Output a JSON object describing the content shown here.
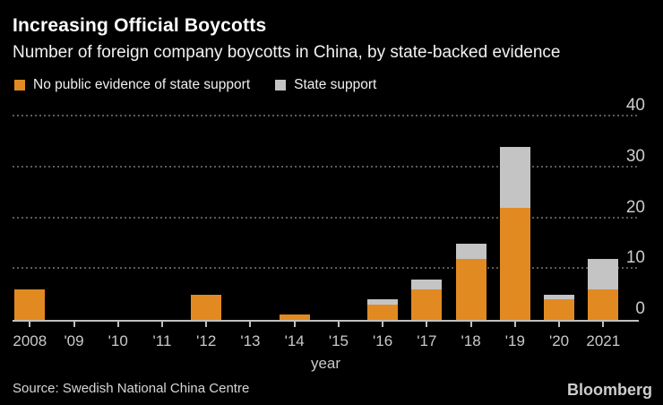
{
  "header": {
    "title": "Increasing Official Boycotts",
    "subtitle": "Number of foreign company boycotts in China, by state-backed evidence"
  },
  "footer": {
    "source": "Source: Swedish National China Centre",
    "brand": "Bloomberg"
  },
  "colors": {
    "background": "#000000",
    "orange": "#E18A21",
    "gray": "#C4C4C4",
    "gridline": "#5a5a5a",
    "axis": "#c0c0c0",
    "tick_label": "#cccccc"
  },
  "chart_data": {
    "type": "bar",
    "stacked": true,
    "title": "Increasing Official Boycotts",
    "subtitle": "Number of foreign company boycotts in China, by state-backed evidence",
    "categories": [
      "2008",
      "'09",
      "'10",
      "'11",
      "'12",
      "'13",
      "'14",
      "'15",
      "'16",
      "'17",
      "'18",
      "'19",
      "'20",
      "2021"
    ],
    "series": [
      {
        "name": "No public evidence of state support",
        "color": "#E18A21",
        "values": [
          6,
          0,
          0,
          0,
          5,
          0,
          1,
          0,
          3,
          6,
          12,
          22,
          4,
          6
        ]
      },
      {
        "name": "State support",
        "color": "#C4C4C4",
        "values": [
          0,
          0,
          0,
          0,
          0,
          0,
          0,
          0,
          1,
          2,
          3,
          12,
          1,
          6
        ]
      }
    ],
    "totals": [
      6,
      0,
      0,
      0,
      5,
      0,
      1,
      0,
      4,
      8,
      15,
      34,
      5,
      12
    ],
    "xlabel": "year",
    "ylabel": "",
    "ylim": [
      0,
      40
    ],
    "yticks": [
      0,
      10,
      20,
      30,
      40
    ],
    "grid": "horizontal-dotted",
    "legend_position": "top-left",
    "y_axis_side": "right"
  }
}
